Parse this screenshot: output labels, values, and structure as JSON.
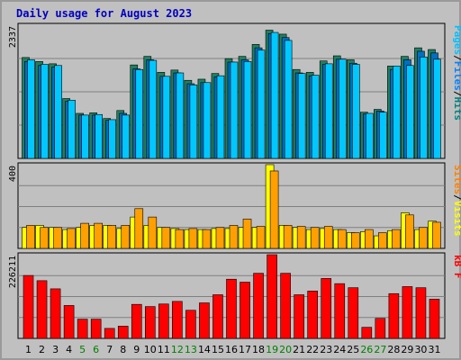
{
  "chart_data": {
    "type": "bar",
    "title": "Daily usage for August 2023",
    "categories": [
      "1",
      "2",
      "3",
      "4",
      "5",
      "6",
      "7",
      "8",
      "9",
      "10",
      "11",
      "12",
      "13",
      "14",
      "15",
      "16",
      "17",
      "18",
      "19",
      "20",
      "21",
      "22",
      "23",
      "24",
      "25",
      "26",
      "27",
      "28",
      "29",
      "30",
      "31"
    ],
    "weekend_days": [
      "5",
      "6",
      "12",
      "13",
      "19",
      "20",
      "26",
      "27"
    ],
    "colors": {
      "hits": "#00c0c0",
      "files": "#0080ff",
      "pages": "#00c0ff",
      "visits": "#ffff00",
      "sites": "#ff8000",
      "kbf": "#ff0000",
      "title": "#0000c0",
      "weekday_label": "#000000",
      "weekend_label": "#008000"
    },
    "panels": [
      {
        "id": "hits_panel",
        "ymax_label": "2337",
        "ylim": [
          0,
          2337
        ],
        "side_legend": [
          {
            "text": "Pages",
            "color": "#00c0ff"
          },
          {
            "text": "/",
            "color": "#000000"
          },
          {
            "text": "Files",
            "color": "#0080ff"
          },
          {
            "text": "/",
            "color": "#000000"
          },
          {
            "text": "Hits",
            "color": "#008080"
          }
        ],
        "series": [
          {
            "name": "Hits",
            "color": "#208060",
            "values": [
              1770,
              1700,
              1660,
              1050,
              790,
              800,
              700,
              840,
              1640,
              1790,
              1510,
              1550,
              1370,
              1390,
              1490,
              1750,
              1790,
              2000,
              2250,
              2180,
              1560,
              1510,
              1710,
              1800,
              1730,
              810,
              860,
              1620,
              1790,
              1940,
              1910
            ]
          },
          {
            "name": "Files",
            "color": "#0070c0",
            "values": [
              1700,
              1630,
              1600,
              1000,
              760,
              760,
              670,
              790,
              1570,
              1730,
              1440,
              1500,
              1310,
              1330,
              1430,
              1690,
              1730,
              1940,
              2190,
              2120,
              1500,
              1450,
              1650,
              1740,
              1670,
              780,
              830,
              1560,
              1730,
              1880,
              1850
            ]
          },
          {
            "name": "Pages",
            "color": "#00c8ff",
            "values": [
              1730,
              1650,
              1630,
              1020,
              760,
              770,
              680,
              760,
              1560,
              1720,
              1440,
              1500,
              1290,
              1330,
              1450,
              1690,
              1700,
              1900,
              2210,
              2070,
              1490,
              1460,
              1660,
              1740,
              1650,
              790,
              810,
              1620,
              1630,
              1780,
              1740
            ]
          }
        ]
      },
      {
        "id": "visits_panel",
        "ymax_label": "400",
        "ylim": [
          0,
          400
        ],
        "side_legend": [
          {
            "text": "Sites",
            "color": "#ff8000"
          },
          {
            "text": "/",
            "color": "#000000"
          },
          {
            "text": "Visits",
            "color": "#ffff00"
          }
        ],
        "series": [
          {
            "name": "Visits",
            "color": "#ffff00",
            "values": [
              100,
              110,
              100,
              90,
              100,
              110,
              110,
              95,
              150,
              110,
              100,
              95,
              90,
              90,
              95,
              95,
              100,
              100,
              400,
              110,
              100,
              90,
              95,
              90,
              75,
              80,
              60,
              85,
              170,
              90,
              130
            ]
          },
          {
            "name": "Sites",
            "color": "#ffa000",
            "values": [
              110,
              100,
              100,
              95,
              120,
              120,
              110,
              110,
              190,
              150,
              100,
              90,
              95,
              90,
              100,
              110,
              140,
              105,
              370,
              110,
              105,
              100,
              105,
              90,
              75,
              90,
              75,
              90,
              160,
              100,
              125
            ]
          }
        ]
      },
      {
        "id": "kbf_panel",
        "ymax_label": "226211",
        "ylim": [
          0,
          226211
        ],
        "side_legend": [
          {
            "text": "kB F",
            "color": "#ff0000"
          }
        ],
        "series": [
          {
            "name": "kB F",
            "color": "#ff0000",
            "values": [
              170000,
              156000,
              134000,
              89000,
              52000,
              52000,
              27000,
              33000,
              92000,
              86000,
              93000,
              100000,
              76000,
              96000,
              118000,
              160000,
              152000,
              176000,
              226211,
              176000,
              118000,
              128000,
              162000,
              148000,
              137000,
              30000,
              54000,
              121000,
              140000,
              137000,
              106000
            ]
          }
        ]
      }
    ]
  }
}
